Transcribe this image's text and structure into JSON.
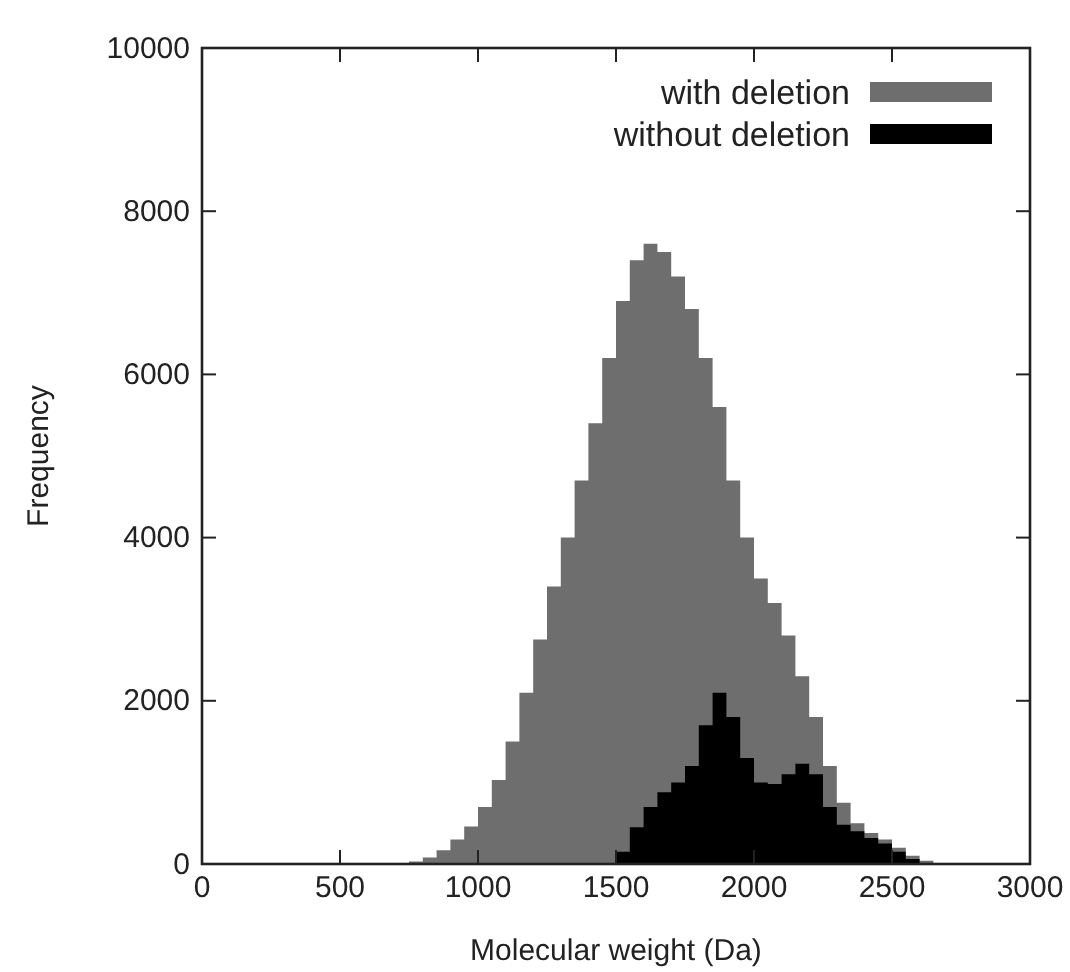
{
  "chart_data": {
    "type": "area",
    "xlabel": "Molecular weight (Da)",
    "ylabel": "Frequency",
    "x": [
      625,
      675,
      725,
      775,
      825,
      875,
      925,
      975,
      1025,
      1075,
      1125,
      1175,
      1225,
      1275,
      1325,
      1375,
      1425,
      1475,
      1525,
      1575,
      1625,
      1675,
      1725,
      1775,
      1825,
      1875,
      1925,
      1975,
      2025,
      2075,
      2125,
      2175,
      2225,
      2275,
      2325,
      2375,
      2425,
      2475,
      2525,
      2575,
      2625,
      2675,
      2725,
      2775
    ],
    "series": [
      {
        "name": "with deletion",
        "color": "#6e6e6e",
        "values": [
          0,
          0,
          10,
          30,
          80,
          170,
          300,
          460,
          700,
          1030,
          1500,
          2100,
          2750,
          3400,
          4000,
          4700,
          5400,
          6200,
          6900,
          7400,
          7600,
          7500,
          7200,
          6800,
          6200,
          5600,
          4700,
          4000,
          3500,
          3200,
          2800,
          2300,
          1800,
          1200,
          750,
          500,
          380,
          300,
          200,
          100,
          40,
          10,
          0,
          0
        ]
      },
      {
        "name": "without deletion",
        "color": "#000000",
        "values": [
          0,
          0,
          0,
          0,
          0,
          0,
          0,
          0,
          0,
          0,
          0,
          0,
          0,
          0,
          0,
          0,
          0,
          0,
          150,
          450,
          700,
          880,
          1000,
          1200,
          1700,
          2100,
          1800,
          1300,
          1000,
          980,
          1100,
          1230,
          1100,
          700,
          480,
          400,
          320,
          250,
          150,
          60,
          0,
          0,
          0,
          0
        ]
      }
    ],
    "xlim": [
      0,
      3000
    ],
    "xticks": [
      0,
      500,
      1000,
      1500,
      2000,
      2500,
      3000
    ],
    "ylim": [
      0,
      10000
    ],
    "yticks": [
      0,
      2000,
      4000,
      6000,
      8000,
      10000
    ],
    "grid": false,
    "legend": "top right"
  }
}
